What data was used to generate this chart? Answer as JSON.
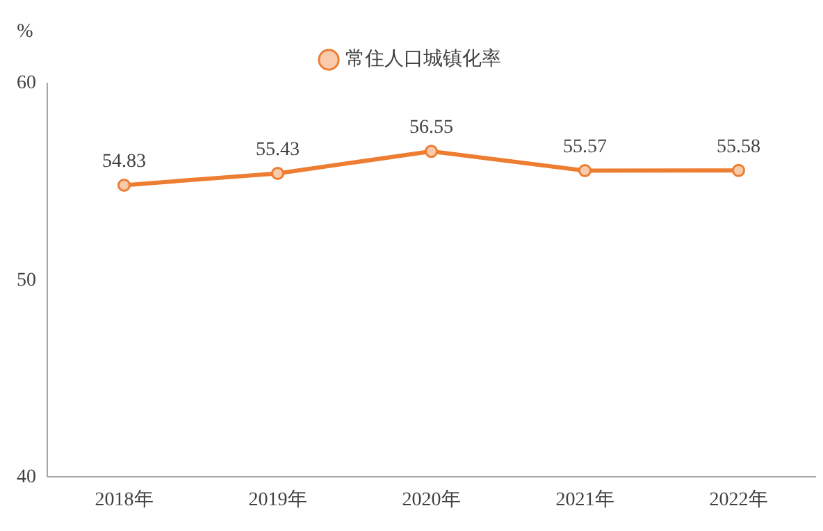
{
  "chart_data": {
    "type": "line",
    "ylabel": "%",
    "categories": [
      "2018年",
      "2019年",
      "2020年",
      "2021年",
      "2022年"
    ],
    "series": [
      {
        "name": "常住人口城镇化率",
        "color": "#ed7d31",
        "values": [
          54.83,
          55.43,
          56.55,
          55.57,
          55.58
        ]
      }
    ],
    "ylim": [
      40,
      60
    ],
    "yticks": [
      40,
      50,
      60
    ],
    "grid": false,
    "legend": "top",
    "marker": "circle",
    "line_style": "solid",
    "data_labels": true
  }
}
